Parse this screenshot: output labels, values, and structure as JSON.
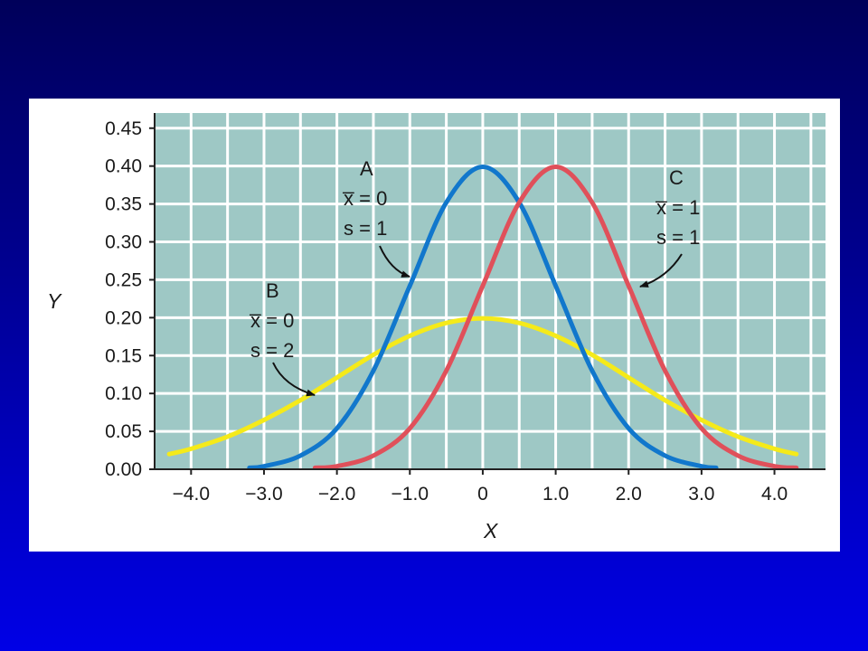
{
  "chart_data": {
    "type": "line",
    "xlabel": "X",
    "ylabel": "Y",
    "xlim": [
      -4.5,
      4.7
    ],
    "ylim": [
      0,
      0.47
    ],
    "x_ticks": [
      "−4.0",
      "−3.0",
      "−2.0",
      "−1.0",
      "0",
      "1.0",
      "2.0",
      "3.0",
      "4.0"
    ],
    "x_tick_values": [
      -4,
      -3,
      -2,
      -1,
      0,
      1,
      2,
      3,
      4
    ],
    "y_ticks": [
      "0.00",
      "0.05",
      "0.10",
      "0.15",
      "0.20",
      "0.25",
      "0.30",
      "0.35",
      "0.40",
      "0.45"
    ],
    "y_tick_values": [
      0,
      0.05,
      0.1,
      0.15,
      0.2,
      0.25,
      0.3,
      0.35,
      0.4,
      0.45
    ],
    "grid": true,
    "background_color": "#9ec8c5",
    "grid_color": "#ffffff",
    "series": [
      {
        "id": "A",
        "color": "#1177cc",
        "x": [
          -3.2,
          -3.0,
          -2.5,
          -2.0,
          -1.5,
          -1.0,
          -0.5,
          0,
          0.5,
          1.0,
          1.5,
          2.0,
          2.5,
          3.0,
          3.2
        ],
        "y": [
          0.002,
          0.004,
          0.018,
          0.054,
          0.13,
          0.242,
          0.352,
          0.399,
          0.352,
          0.242,
          0.13,
          0.054,
          0.018,
          0.004,
          0.002
        ]
      },
      {
        "id": "B",
        "color": "#f5ea1a",
        "x": [
          -4.3,
          -4.0,
          -3.5,
          -3.0,
          -2.5,
          -2.0,
          -1.5,
          -1.0,
          -0.5,
          0,
          0.5,
          1.0,
          1.5,
          2.0,
          2.5,
          3.0,
          3.5,
          4.0,
          4.3
        ],
        "y": [
          0.02,
          0.027,
          0.043,
          0.065,
          0.091,
          0.121,
          0.151,
          0.176,
          0.193,
          0.199,
          0.193,
          0.176,
          0.151,
          0.121,
          0.091,
          0.065,
          0.043,
          0.027,
          0.02
        ]
      },
      {
        "id": "C",
        "color": "#e0505a",
        "x": [
          -2.3,
          -2.0,
          -1.5,
          -1.0,
          -0.5,
          0,
          0.5,
          1.0,
          1.5,
          2.0,
          2.5,
          3.0,
          3.5,
          4.0,
          4.3
        ],
        "y": [
          0.002,
          0.004,
          0.018,
          0.054,
          0.13,
          0.242,
          0.352,
          0.399,
          0.352,
          0.242,
          0.13,
          0.054,
          0.018,
          0.004,
          0.002
        ]
      }
    ],
    "annotations": [
      {
        "id": "A",
        "lines": [
          "A",
          "x̅ = 0",
          "s = 1"
        ]
      },
      {
        "id": "B",
        "lines": [
          "B",
          "x̅ = 0",
          "s = 2"
        ]
      },
      {
        "id": "C",
        "lines": [
          "C",
          "x̅ = 1",
          "s = 1"
        ]
      }
    ]
  }
}
